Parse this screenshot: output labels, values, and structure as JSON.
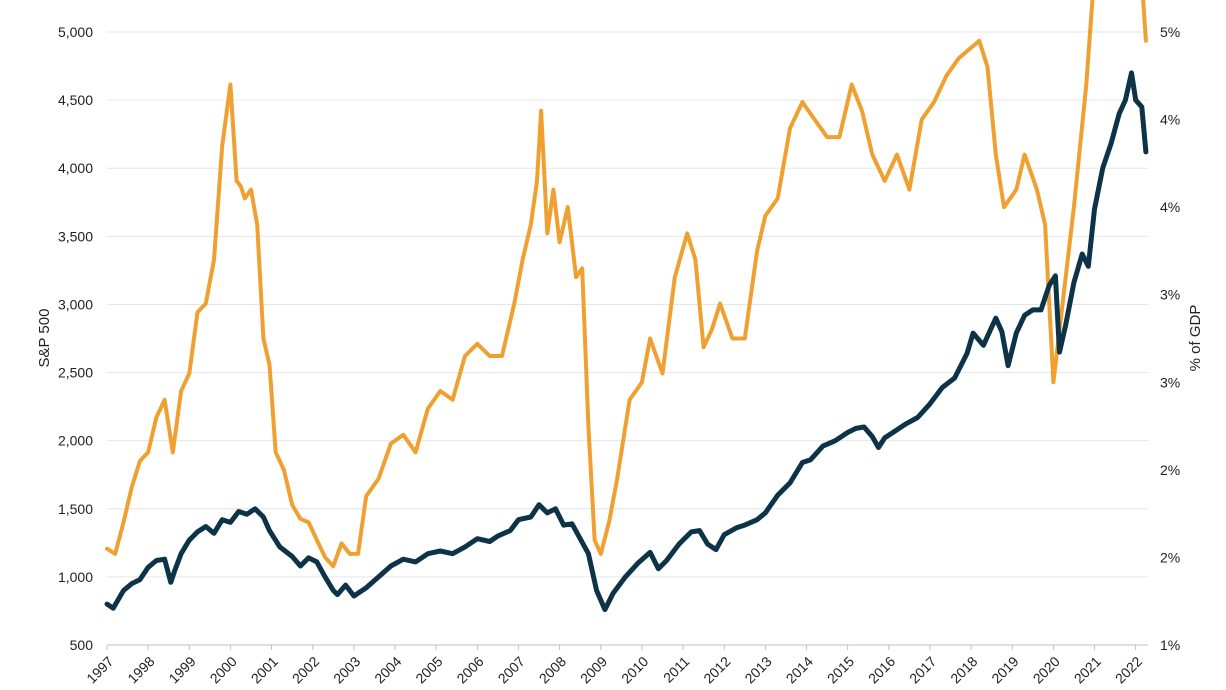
{
  "chart_data": {
    "type": "line",
    "ylabel_left": "S&P 500",
    "ylabel_right": "% of GDP",
    "left_ylim": [
      500,
      5000
    ],
    "right_ylim": [
      0,
      3.5
    ],
    "left_ticks": [
      "500",
      "1,000",
      "1,500",
      "2,000",
      "2,500",
      "3,000",
      "3,500",
      "4,000",
      "4,500",
      "5,000"
    ],
    "right_ticks": [
      "1%",
      "2%",
      "2%",
      "3%",
      "3%",
      "4%",
      "4%",
      "5%"
    ],
    "x_ticks": [
      "1997",
      "1998",
      "1999",
      "2000",
      "2001",
      "2002",
      "2003",
      "2004",
      "2005",
      "2006",
      "2007",
      "2008",
      "2009",
      "2010",
      "2011",
      "2012",
      "2013",
      "2014",
      "2015",
      "2016",
      "2017",
      "2018",
      "2019",
      "2020",
      "2021",
      "2022"
    ],
    "xlim": [
      1997.0,
      2022.3
    ],
    "grid": "horizontal",
    "colors": {
      "series_left": "#0d3349",
      "series_right": "#f0a030",
      "grid": "#e6e6e6"
    },
    "series": [
      {
        "axis": "left",
        "x": [
          1997.0,
          1997.15,
          1997.4,
          1997.6,
          1997.8,
          1998.0,
          1998.2,
          1998.4,
          1998.55,
          1998.65,
          1998.8,
          1999.0,
          1999.2,
          1999.4,
          1999.6,
          1999.8,
          2000.0,
          2000.2,
          2000.4,
          2000.6,
          2000.8,
          2000.95,
          2001.2,
          2001.5,
          2001.7,
          2001.9,
          2002.1,
          2002.3,
          2002.5,
          2002.6,
          2002.8,
          2003.0,
          2003.3,
          2003.6,
          2003.9,
          2004.2,
          2004.5,
          2004.8,
          2005.1,
          2005.4,
          2005.7,
          2006.0,
          2006.3,
          2006.5,
          2006.8,
          2007.0,
          2007.3,
          2007.5,
          2007.7,
          2007.9,
          2008.1,
          2008.3,
          2008.5,
          2008.7,
          2008.9,
          2009.1,
          2009.3,
          2009.6,
          2009.9,
          2010.2,
          2010.4,
          2010.6,
          2010.9,
          2011.2,
          2011.4,
          2011.6,
          2011.8,
          2012.0,
          2012.3,
          2012.5,
          2012.8,
          2013.0,
          2013.3,
          2013.6,
          2013.9,
          2014.1,
          2014.4,
          2014.7,
          2015.0,
          2015.2,
          2015.4,
          2015.6,
          2015.75,
          2015.9,
          2016.1,
          2016.4,
          2016.7,
          2017.0,
          2017.3,
          2017.6,
          2017.9,
          2018.05,
          2018.3,
          2018.6,
          2018.75,
          2018.9,
          2019.1,
          2019.3,
          2019.5,
          2019.7,
          2019.9,
          2020.05,
          2020.15,
          2020.3,
          2020.5,
          2020.7,
          2020.85,
          2021.0,
          2021.2,
          2021.4,
          2021.6,
          2021.75,
          2021.9,
          2022.0,
          2022.15,
          2022.25
        ],
        "y": [
          800,
          770,
          900,
          950,
          980,
          1070,
          1120,
          1130,
          960,
          1050,
          1170,
          1270,
          1330,
          1370,
          1320,
          1420,
          1400,
          1480,
          1460,
          1500,
          1440,
          1340,
          1220,
          1150,
          1080,
          1140,
          1110,
          1000,
          900,
          870,
          940,
          860,
          920,
          1000,
          1080,
          1130,
          1110,
          1170,
          1190,
          1170,
          1220,
          1280,
          1260,
          1300,
          1340,
          1420,
          1440,
          1530,
          1470,
          1500,
          1380,
          1390,
          1280,
          1170,
          900,
          760,
          880,
          1000,
          1100,
          1180,
          1060,
          1120,
          1240,
          1330,
          1340,
          1240,
          1200,
          1310,
          1360,
          1380,
          1420,
          1470,
          1600,
          1690,
          1840,
          1860,
          1960,
          2000,
          2060,
          2090,
          2100,
          2030,
          1950,
          2020,
          2060,
          2120,
          2170,
          2270,
          2390,
          2460,
          2640,
          2790,
          2700,
          2900,
          2800,
          2550,
          2790,
          2920,
          2960,
          2960,
          3140,
          3210,
          2650,
          2850,
          3160,
          3370,
          3280,
          3700,
          4000,
          4180,
          4400,
          4500,
          4700,
          4500,
          4450,
          4120
        ]
      },
      {
        "axis": "right",
        "x": [
          1997.0,
          1997.2,
          1997.4,
          1997.6,
          1997.8,
          1998.0,
          1998.2,
          1998.4,
          1998.6,
          1998.8,
          1999.0,
          1999.2,
          1999.4,
          1999.6,
          1999.8,
          2000.0,
          2000.15,
          2000.25,
          2000.35,
          2000.5,
          2000.65,
          2000.8,
          2000.95,
          2001.1,
          2001.3,
          2001.5,
          2001.7,
          2001.9,
          2002.1,
          2002.3,
          2002.5,
          2002.7,
          2002.9,
          2003.1,
          2003.3,
          2003.6,
          2003.9,
          2004.2,
          2004.5,
          2004.8,
          2005.1,
          2005.4,
          2005.7,
          2006.0,
          2006.3,
          2006.6,
          2006.9,
          2007.1,
          2007.3,
          2007.45,
          2007.55,
          2007.7,
          2007.85,
          2008.0,
          2008.2,
          2008.4,
          2008.55,
          2008.7,
          2008.85,
          2009.0,
          2009.2,
          2009.4,
          2009.7,
          2010.0,
          2010.2,
          2010.5,
          2010.8,
          2011.1,
          2011.3,
          2011.5,
          2011.7,
          2011.9,
          2012.2,
          2012.5,
          2012.8,
          2013.0,
          2013.3,
          2013.6,
          2013.9,
          2014.2,
          2014.5,
          2014.8,
          2015.1,
          2015.35,
          2015.6,
          2015.9,
          2016.2,
          2016.5,
          2016.8,
          2017.1,
          2017.4,
          2017.7,
          2017.95,
          2018.2,
          2018.4,
          2018.6,
          2018.8,
          2019.1,
          2019.3,
          2019.6,
          2019.8,
          2020.0,
          2020.2,
          2020.5,
          2020.8,
          2021.0,
          2021.3,
          2021.6,
          2021.8,
          2022.0,
          2022.15,
          2022.25
        ],
        "y": [
          0.55,
          0.52,
          0.7,
          0.9,
          1.05,
          1.1,
          1.3,
          1.4,
          1.1,
          1.45,
          1.55,
          1.9,
          1.95,
          2.2,
          2.85,
          3.2,
          2.65,
          2.62,
          2.55,
          2.6,
          2.4,
          1.75,
          1.6,
          1.1,
          1.0,
          0.8,
          0.72,
          0.7,
          0.6,
          0.5,
          0.45,
          0.58,
          0.52,
          0.52,
          0.85,
          0.95,
          1.15,
          1.2,
          1.1,
          1.35,
          1.45,
          1.4,
          1.65,
          1.72,
          1.65,
          1.65,
          1.95,
          2.2,
          2.4,
          2.65,
          3.05,
          2.35,
          2.6,
          2.3,
          2.5,
          2.1,
          2.15,
          1.25,
          0.6,
          0.52,
          0.7,
          0.95,
          1.4,
          1.5,
          1.75,
          1.55,
          2.1,
          2.35,
          2.2,
          1.7,
          1.8,
          1.95,
          1.75,
          1.75,
          2.25,
          2.45,
          2.55,
          2.95,
          3.1,
          3.0,
          2.9,
          2.9,
          3.2,
          3.05,
          2.8,
          2.65,
          2.8,
          2.6,
          3.0,
          3.1,
          3.25,
          3.35,
          3.4,
          3.45,
          3.3,
          2.8,
          2.5,
          2.6,
          2.8,
          2.6,
          2.4,
          1.5,
          1.9,
          2.5,
          3.2,
          3.85,
          4.15,
          4.45,
          4.1,
          4.05,
          3.8,
          3.45
        ]
      }
    ]
  }
}
